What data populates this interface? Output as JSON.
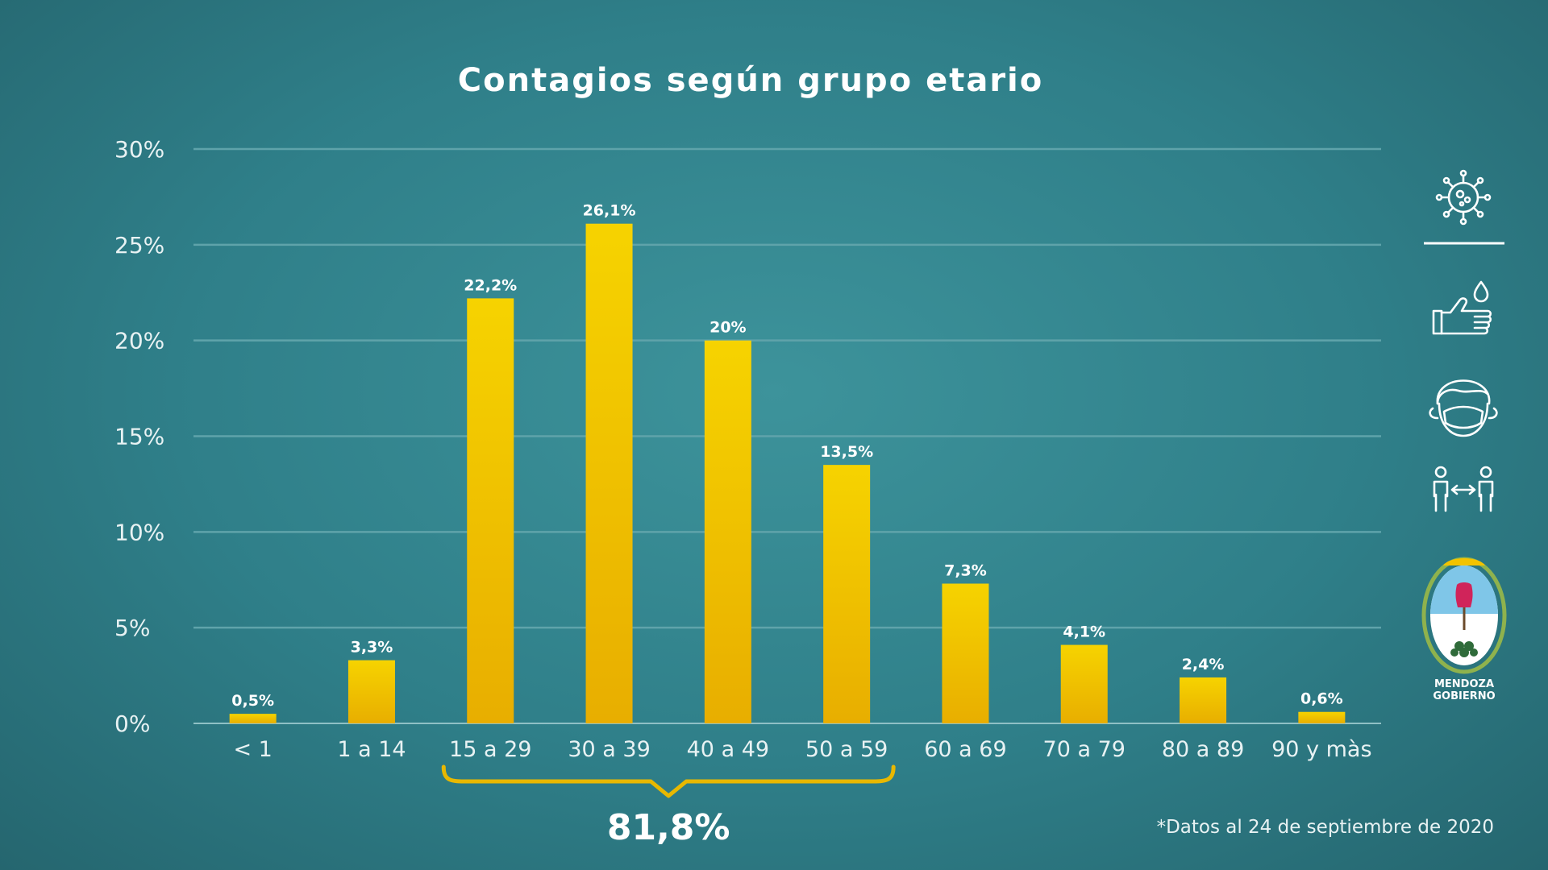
{
  "chart_data": {
    "type": "bar",
    "title": "Contagios según grupo etario",
    "categories": [
      "< 1",
      "1 a 14",
      "15 a 29",
      "30 a 39",
      "40 a 49",
      "50 a 59",
      "60 a 69",
      "70 a 79",
      "80 a 89",
      "90 y màs"
    ],
    "values": [
      0.5,
      3.3,
      22.2,
      26.1,
      20,
      13.5,
      7.3,
      4.1,
      2.4,
      0.6
    ],
    "value_labels": [
      "0,5%",
      "3,3%",
      "22,2%",
      "26,1%",
      "20%",
      "13,5%",
      "7,3%",
      "4,1%",
      "2,4%",
      "0,6%"
    ],
    "y_ticks": [
      0,
      5,
      10,
      15,
      20,
      25,
      30
    ],
    "y_tick_labels": [
      "0%",
      "5%",
      "10%",
      "15%",
      "20%",
      "25%",
      "30%"
    ],
    "ylim": [
      0,
      30
    ],
    "grid": true,
    "bar_color_top": "#f6d300",
    "bar_color_bottom": "#e8ae00",
    "annotation": {
      "label": "81,8%",
      "spans_categories": [
        "15 a 29",
        "30 a 39",
        "40 a 49",
        "50 a 59"
      ],
      "color": "#e8b800"
    }
  },
  "footnote": "*Datos al 24 de septiembre de 2020",
  "sidebar": {
    "icons": [
      "virus-icon",
      "hand-wash-icon",
      "face-mask-icon",
      "social-distance-icon"
    ],
    "logo": {
      "line1": "MENDOZA",
      "line2": "GOBIERNO"
    }
  },
  "colors": {
    "background": "#2f8590",
    "gridline": "#5fa3aa",
    "text": "#ffffff"
  }
}
